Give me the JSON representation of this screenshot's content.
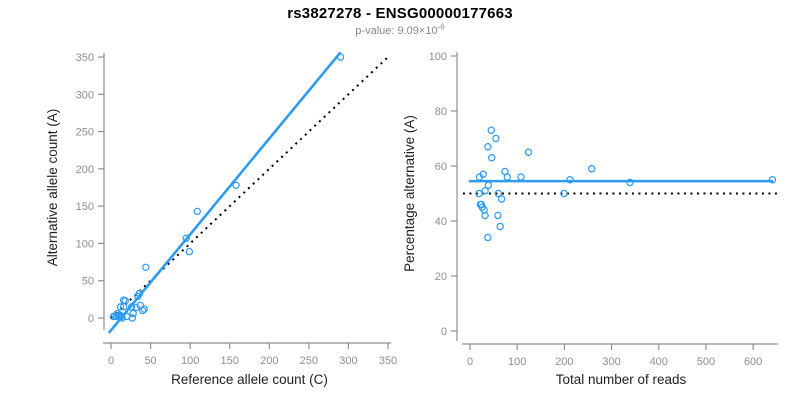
{
  "header": {
    "title": "rs3827278 - ENSG00000177663",
    "subtitle_text": "p-value: 9.09×10",
    "subtitle_exponent": "-6"
  },
  "colors": {
    "accent_blue": "#2b9bf4",
    "dotted_line": "#000000",
    "axis_line": "#8f8f8f",
    "tick_label": "#8f8f8f",
    "axis_title": "#1f1f1f",
    "title": "#000000",
    "subtitle": "#8a8a8a",
    "background": "#ffffff"
  },
  "chart_data": [
    {
      "id": "allele-count-scatter",
      "type": "scatter",
      "title": "",
      "xlabel": "Reference allele count (C)",
      "ylabel": "Alternative allele count (A)",
      "xlim": [
        0,
        350
      ],
      "ylim": [
        0,
        350
      ],
      "xticks": [
        0,
        50,
        100,
        150,
        200,
        250,
        300,
        350
      ],
      "yticks": [
        0,
        50,
        100,
        150,
        200,
        250,
        300,
        350
      ],
      "grid": false,
      "legend": "none",
      "marker": "open-circle",
      "points": [
        [
          3,
          2
        ],
        [
          5,
          3
        ],
        [
          7,
          2
        ],
        [
          8,
          6
        ],
        [
          9,
          3
        ],
        [
          10,
          2
        ],
        [
          11,
          4
        ],
        [
          12,
          15
        ],
        [
          13,
          2
        ],
        [
          14,
          0
        ],
        [
          16,
          15
        ],
        [
          16,
          24
        ],
        [
          18,
          23
        ],
        [
          20,
          2
        ],
        [
          26,
          15
        ],
        [
          27,
          0
        ],
        [
          28,
          6
        ],
        [
          32,
          14
        ],
        [
          34,
          29
        ],
        [
          36,
          33
        ],
        [
          37,
          17
        ],
        [
          40,
          10
        ],
        [
          42,
          12
        ],
        [
          44,
          68
        ],
        [
          95,
          107
        ],
        [
          99,
          89
        ],
        [
          109,
          143
        ],
        [
          158,
          178
        ],
        [
          290,
          350
        ]
      ],
      "fit_line": {
        "name": "regression-line",
        "style": "solid",
        "x1": -2,
        "y1": -19,
        "x2": 289,
        "y2": 355
      },
      "identity_line": {
        "name": "identity-line",
        "style": "dotted",
        "x1": 0,
        "y1": 0,
        "x2": 352,
        "y2": 352
      }
    },
    {
      "id": "percentage-reads-scatter",
      "type": "scatter",
      "title": "",
      "xlabel": "Total number of reads",
      "ylabel": "Percentage alternative (A)",
      "xlim": [
        0,
        640
      ],
      "ylim": [
        0,
        100
      ],
      "xticks": [
        0,
        100,
        200,
        300,
        400,
        500,
        600
      ],
      "yticks": [
        0,
        20,
        40,
        60,
        80,
        100
      ],
      "grid": false,
      "legend": "none",
      "marker": "open-circle",
      "points": [
        [
          19,
          50
        ],
        [
          20,
          56
        ],
        [
          22,
          46
        ],
        [
          24,
          46
        ],
        [
          26,
          45
        ],
        [
          28,
          57
        ],
        [
          30,
          44
        ],
        [
          32,
          51
        ],
        [
          32,
          42
        ],
        [
          38,
          67
        ],
        [
          38,
          34
        ],
        [
          39,
          53
        ],
        [
          45,
          73
        ],
        [
          46,
          63
        ],
        [
          55,
          70
        ],
        [
          59,
          42
        ],
        [
          60,
          50
        ],
        [
          64,
          38
        ],
        [
          67,
          48
        ],
        [
          74,
          58
        ],
        [
          79,
          56
        ],
        [
          108,
          56
        ],
        [
          124,
          65
        ],
        [
          199,
          50
        ],
        [
          212,
          55
        ],
        [
          258,
          59
        ],
        [
          339,
          54
        ],
        [
          641,
          55
        ]
      ],
      "fit_line": {
        "name": "mean-percentage-line",
        "style": "solid",
        "x1": 0,
        "y1": 54.5,
        "x2": 640,
        "y2": 54.5
      },
      "identity_line": {
        "name": "fifty-percent-line",
        "style": "dotted",
        "x1": -15,
        "y1": 50,
        "x2": 653,
        "y2": 50
      }
    }
  ]
}
